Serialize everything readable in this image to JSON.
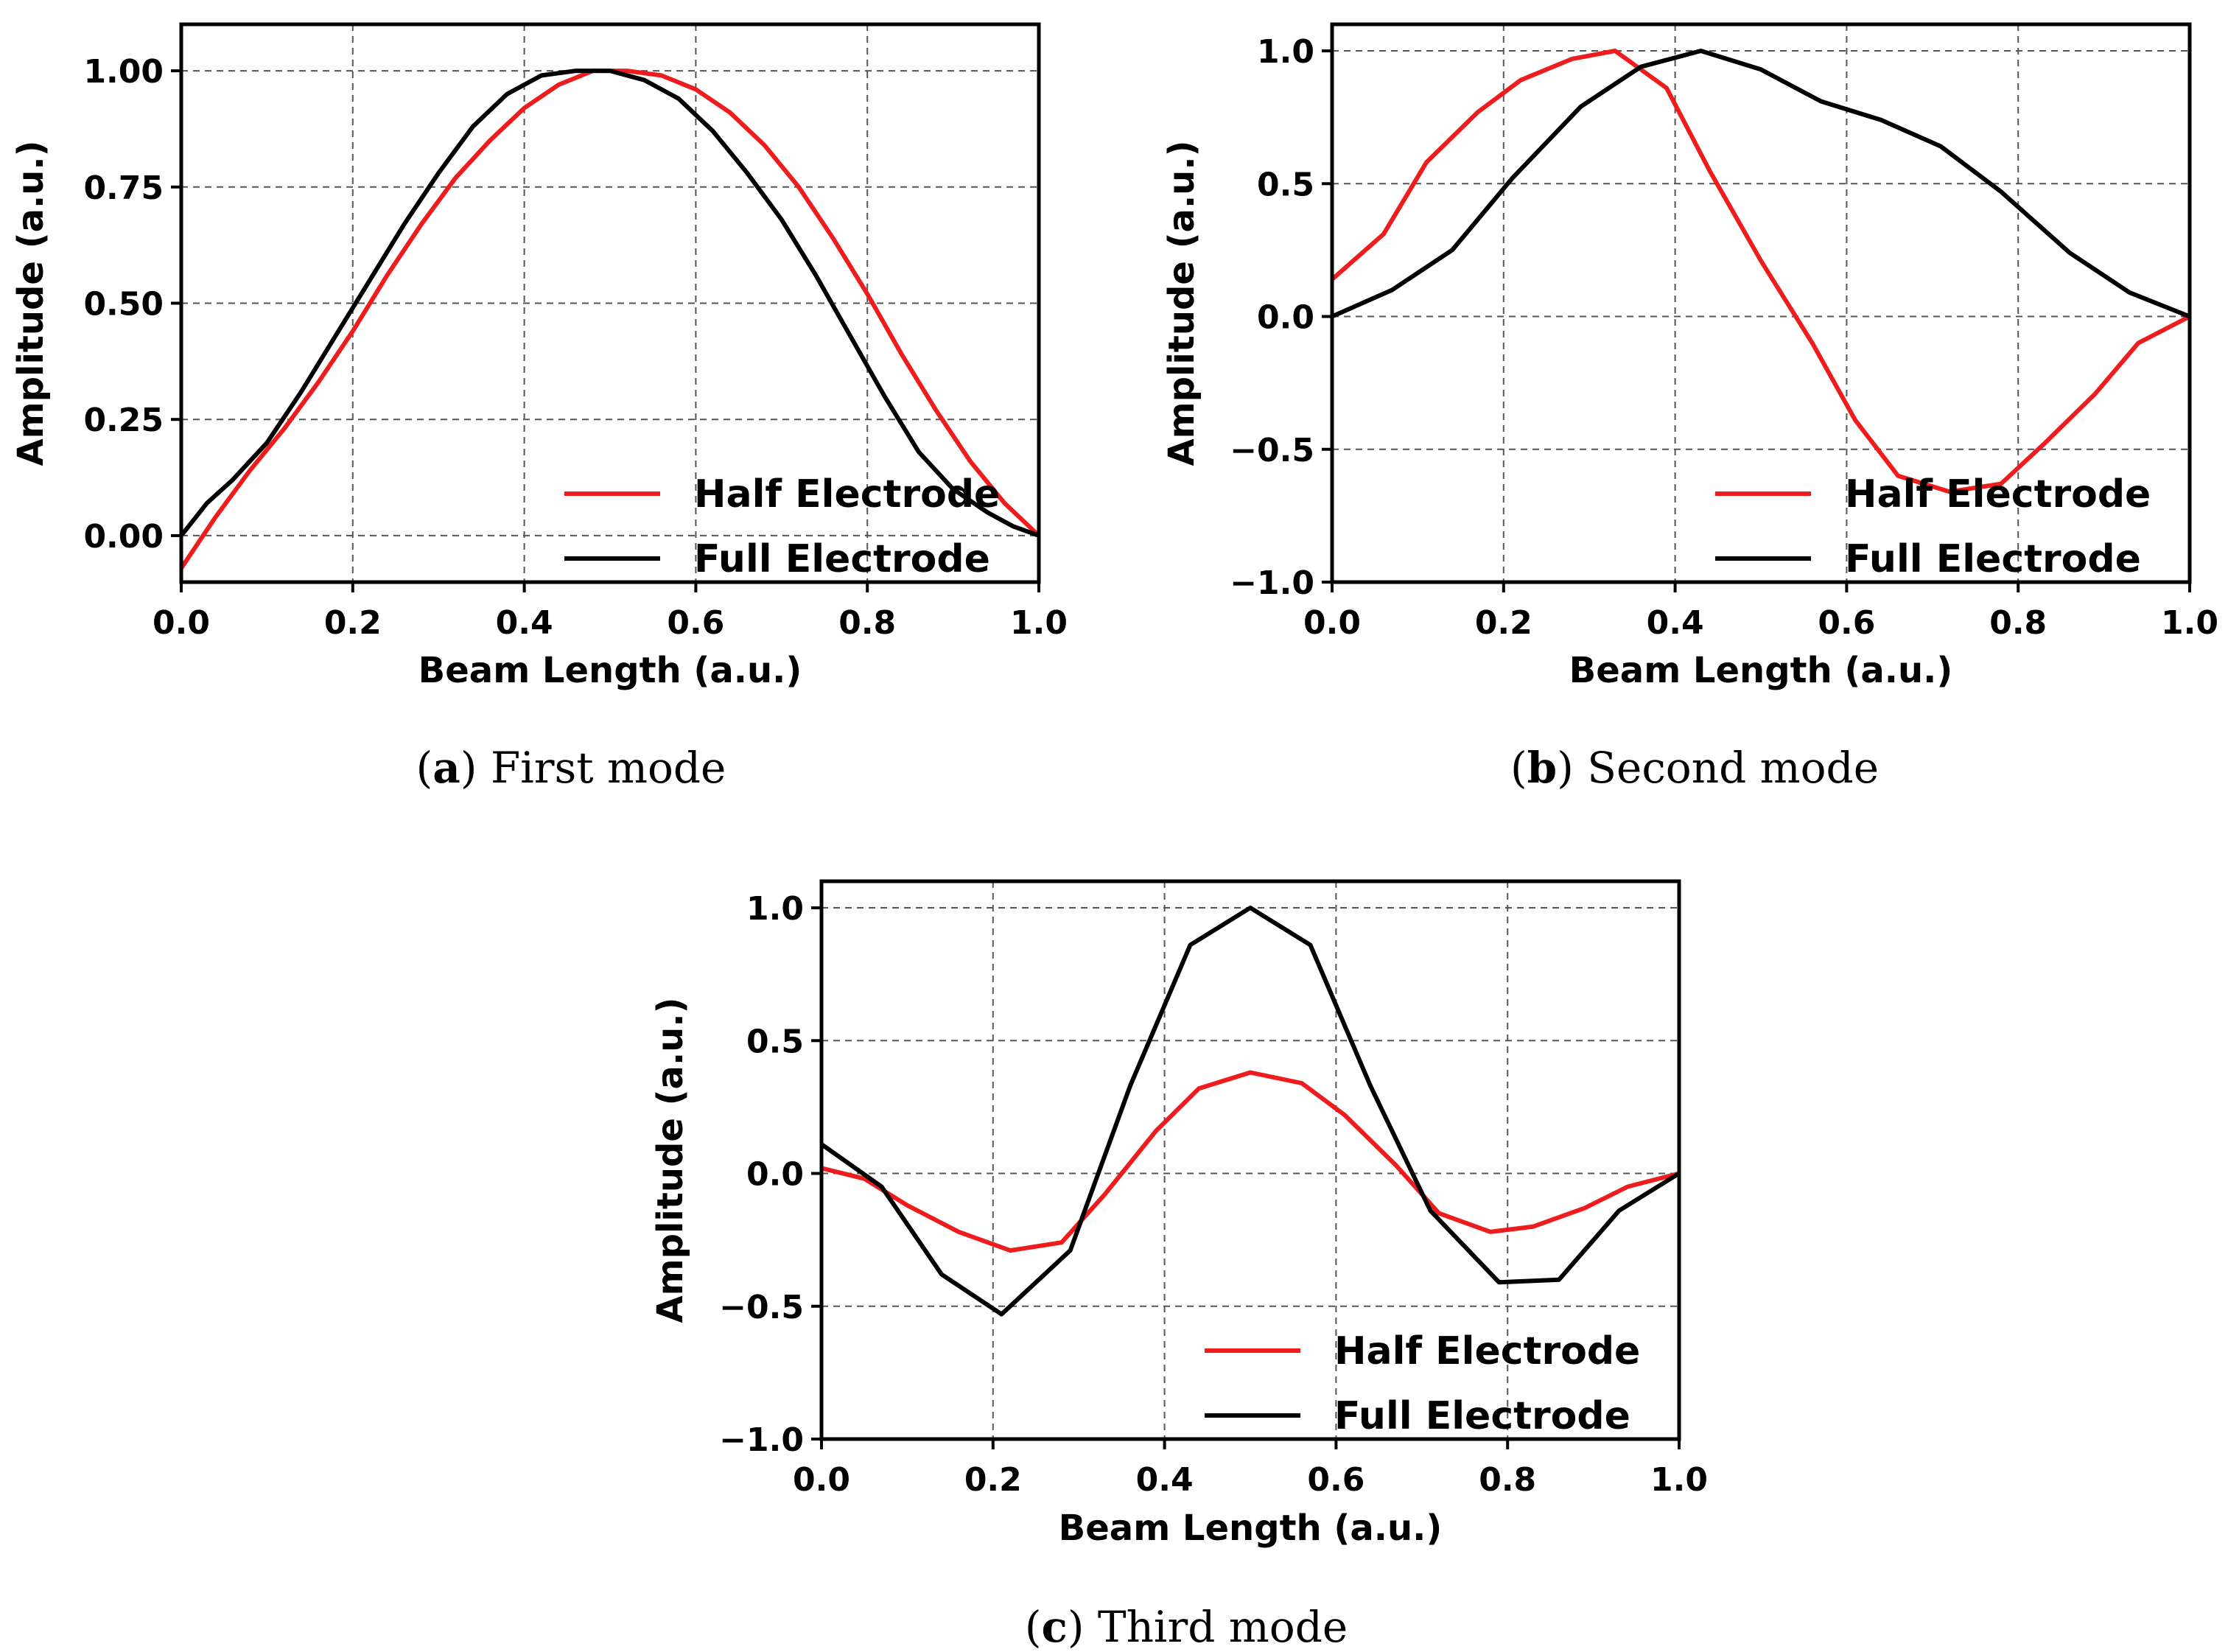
{
  "chart_data": [
    {
      "type": "line",
      "caption_letter": "a",
      "caption_text": "First mode",
      "xlabel": "Beam Length (a.u.)",
      "ylabel": "Amplitude (a.u.)",
      "xlim": [
        0.0,
        1.0
      ],
      "ylim": [
        -0.1,
        1.1
      ],
      "xticks": [
        0.0,
        0.2,
        0.4,
        0.6,
        0.8,
        1.0
      ],
      "xtick_labels": [
        "0.0",
        "0.2",
        "0.4",
        "0.6",
        "0.8",
        "1.0"
      ],
      "yticks": [
        0.0,
        0.25,
        0.5,
        0.75,
        1.0
      ],
      "ytick_labels": [
        "0.00",
        "0.25",
        "0.50",
        "0.75",
        "1.00"
      ],
      "grid": true,
      "legend_position": "bottom-right",
      "series": [
        {
          "name": "Half Electrode",
          "color": "#ee1c1c",
          "x": [
            0.0,
            0.04,
            0.08,
            0.12,
            0.16,
            0.2,
            0.24,
            0.28,
            0.32,
            0.36,
            0.4,
            0.44,
            0.48,
            0.52,
            0.56,
            0.6,
            0.64,
            0.68,
            0.72,
            0.76,
            0.8,
            0.84,
            0.88,
            0.92,
            0.96,
            1.0
          ],
          "y": [
            -0.07,
            0.04,
            0.14,
            0.23,
            0.33,
            0.44,
            0.56,
            0.67,
            0.77,
            0.85,
            0.92,
            0.97,
            1.0,
            1.0,
            0.99,
            0.96,
            0.91,
            0.84,
            0.75,
            0.64,
            0.52,
            0.39,
            0.27,
            0.16,
            0.07,
            0.0
          ]
        },
        {
          "name": "Full Electrode",
          "color": "#000000",
          "x": [
            0.0,
            0.03,
            0.06,
            0.1,
            0.14,
            0.18,
            0.22,
            0.26,
            0.3,
            0.34,
            0.38,
            0.42,
            0.46,
            0.5,
            0.54,
            0.58,
            0.62,
            0.66,
            0.7,
            0.74,
            0.78,
            0.82,
            0.86,
            0.9,
            0.94,
            0.97,
            1.0
          ],
          "y": [
            0.0,
            0.07,
            0.12,
            0.2,
            0.31,
            0.43,
            0.55,
            0.67,
            0.78,
            0.88,
            0.95,
            0.99,
            1.0,
            1.0,
            0.98,
            0.94,
            0.87,
            0.78,
            0.68,
            0.56,
            0.43,
            0.3,
            0.18,
            0.1,
            0.05,
            0.02,
            0.0
          ]
        }
      ]
    },
    {
      "type": "line",
      "caption_letter": "b",
      "caption_text": "Second mode",
      "xlabel": "Beam Length (a.u.)",
      "ylabel": "Amplitude (a.u.)",
      "xlim": [
        0.0,
        1.0
      ],
      "ylim": [
        -1.0,
        1.1
      ],
      "xticks": [
        0.0,
        0.2,
        0.4,
        0.6,
        0.8,
        1.0
      ],
      "xtick_labels": [
        "0.0",
        "0.2",
        "0.4",
        "0.6",
        "0.8",
        "1.0"
      ],
      "yticks": [
        -1.0,
        -0.5,
        0.0,
        0.5,
        1.0
      ],
      "ytick_labels": [
        "−1.0",
        "−0.5",
        "0.0",
        "0.5",
        "1.0"
      ],
      "grid": true,
      "legend_position": "bottom-right",
      "series": [
        {
          "name": "Half Electrode",
          "color": "#ee1c1c",
          "x": [
            0.0,
            0.06,
            0.11,
            0.17,
            0.22,
            0.28,
            0.33,
            0.39,
            0.44,
            0.5,
            0.56,
            0.61,
            0.66,
            0.72,
            0.78,
            0.83,
            0.89,
            0.94,
            1.0
          ],
          "y": [
            0.14,
            0.31,
            0.58,
            0.77,
            0.89,
            0.97,
            1.0,
            0.86,
            0.55,
            0.21,
            -0.1,
            -0.39,
            -0.6,
            -0.66,
            -0.63,
            -0.48,
            -0.29,
            -0.1,
            0.0
          ]
        },
        {
          "name": "Full Electrode",
          "color": "#000000",
          "x": [
            0.0,
            0.07,
            0.14,
            0.21,
            0.29,
            0.36,
            0.43,
            0.5,
            0.57,
            0.64,
            0.71,
            0.78,
            0.86,
            0.93,
            1.0
          ],
          "y": [
            0.0,
            0.1,
            0.25,
            0.52,
            0.79,
            0.94,
            1.0,
            0.93,
            0.81,
            0.74,
            0.64,
            0.47,
            0.24,
            0.09,
            0.0
          ]
        }
      ]
    },
    {
      "type": "line",
      "caption_letter": "c",
      "caption_text": "Third mode",
      "xlabel": "Beam Length (a.u.)",
      "ylabel": "Amplitude (a.u.)",
      "xlim": [
        0.0,
        1.0
      ],
      "ylim": [
        -1.0,
        1.1
      ],
      "xticks": [
        0.0,
        0.2,
        0.4,
        0.6,
        0.8,
        1.0
      ],
      "xtick_labels": [
        "0.0",
        "0.2",
        "0.4",
        "0.6",
        "0.8",
        "1.0"
      ],
      "yticks": [
        -1.0,
        -0.5,
        0.0,
        0.5,
        1.0
      ],
      "ytick_labels": [
        "−1.0",
        "−0.5",
        "0.0",
        "0.5",
        "1.0"
      ],
      "grid": true,
      "legend_position": "bottom-right",
      "series": [
        {
          "name": "Half Electrode",
          "color": "#ee1c1c",
          "x": [
            0.0,
            0.05,
            0.1,
            0.16,
            0.22,
            0.28,
            0.33,
            0.39,
            0.44,
            0.5,
            0.56,
            0.61,
            0.67,
            0.72,
            0.78,
            0.83,
            0.89,
            0.94,
            1.0
          ],
          "y": [
            0.02,
            -0.02,
            -0.12,
            -0.22,
            -0.29,
            -0.26,
            -0.08,
            0.16,
            0.32,
            0.38,
            0.34,
            0.22,
            0.03,
            -0.15,
            -0.22,
            -0.2,
            -0.13,
            -0.05,
            0.0
          ]
        },
        {
          "name": "Full Electrode",
          "color": "#000000",
          "x": [
            0.0,
            0.07,
            0.14,
            0.21,
            0.29,
            0.36,
            0.43,
            0.5,
            0.57,
            0.64,
            0.71,
            0.79,
            0.86,
            0.93,
            1.0
          ],
          "y": [
            0.11,
            -0.05,
            -0.38,
            -0.53,
            -0.29,
            0.33,
            0.86,
            1.0,
            0.86,
            0.33,
            -0.14,
            -0.41,
            -0.4,
            -0.14,
            0.0
          ]
        }
      ]
    }
  ]
}
